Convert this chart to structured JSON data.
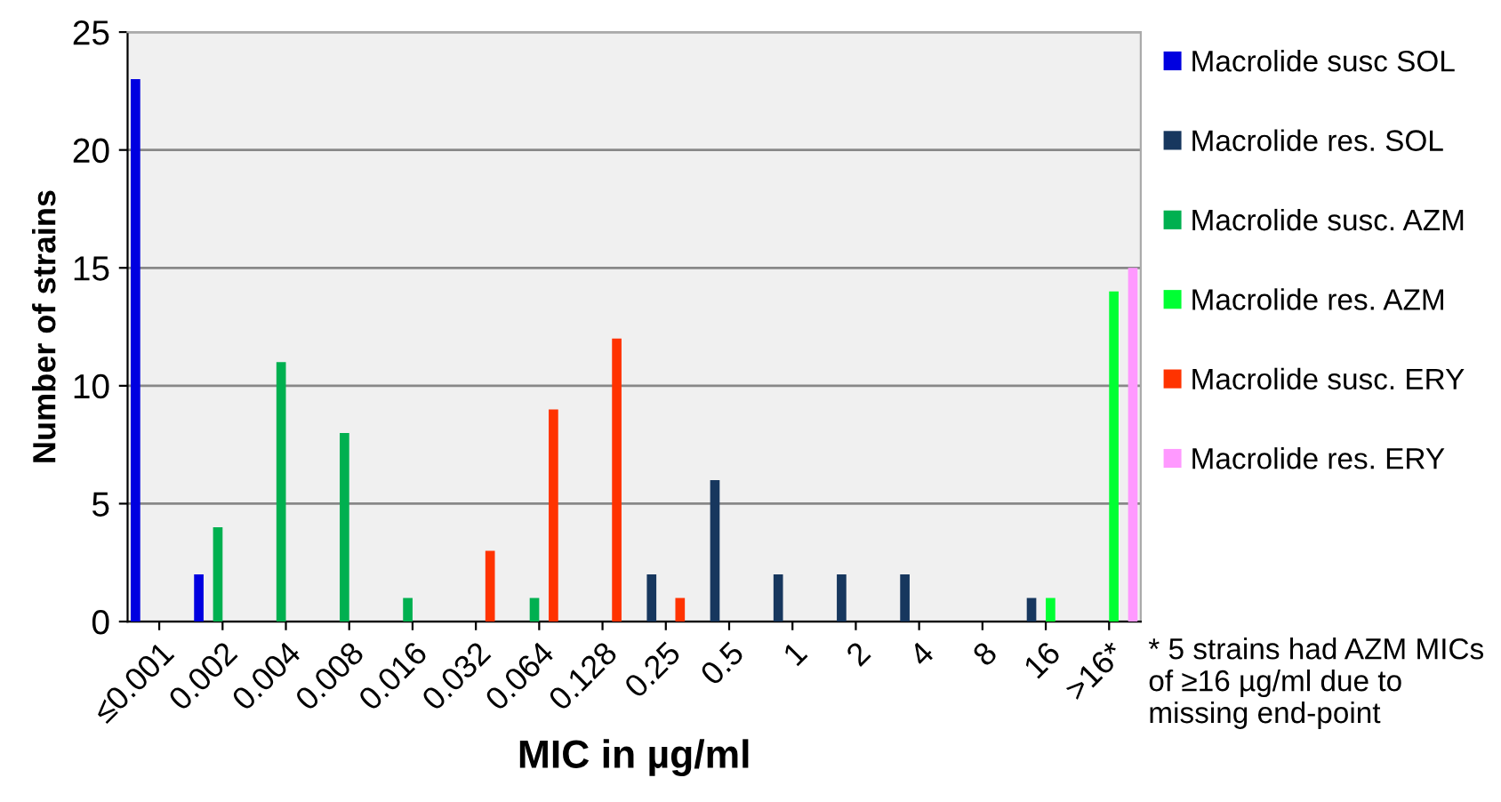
{
  "chart_data": {
    "type": "bar",
    "xlabel": "MIC in µg/ml",
    "ylabel": "Number of strains",
    "categories": [
      "≤0.001",
      "0.002",
      "0.004",
      "0.008",
      "0.016",
      "0.032",
      "0.064",
      "0.128",
      "0.25",
      "0.5",
      "1",
      "2",
      "4",
      "8",
      "16",
      ">16*"
    ],
    "series": [
      {
        "name": "Macrolide susc SOL",
        "color": "#0000e0",
        "values": [
          23,
          2,
          null,
          null,
          null,
          null,
          null,
          null,
          null,
          null,
          null,
          null,
          null,
          null,
          null,
          null
        ]
      },
      {
        "name": "Macrolide res. SOL",
        "color": "#17375e",
        "values": [
          null,
          null,
          null,
          null,
          null,
          null,
          null,
          null,
          2,
          6,
          2,
          2,
          2,
          null,
          1,
          null
        ]
      },
      {
        "name": "Macrolide susc. AZM",
        "color": "#00b050",
        "values": [
          null,
          4,
          11,
          8,
          1,
          null,
          1,
          null,
          null,
          null,
          null,
          null,
          null,
          null,
          null,
          null
        ]
      },
      {
        "name": "Macrolide res. AZM",
        "color": "#00ff33",
        "values": [
          null,
          null,
          null,
          null,
          null,
          null,
          null,
          null,
          null,
          null,
          null,
          null,
          null,
          null,
          1,
          14
        ]
      },
      {
        "name": "Macrolide susc. ERY",
        "color": "#ff3300",
        "values": [
          null,
          null,
          null,
          null,
          null,
          3,
          9,
          12,
          1,
          null,
          null,
          null,
          null,
          null,
          null,
          null
        ]
      },
      {
        "name": "Macrolide res. ERY",
        "color": "#ff99ff",
        "values": [
          null,
          null,
          null,
          null,
          null,
          null,
          null,
          null,
          null,
          null,
          null,
          null,
          null,
          null,
          null,
          15
        ]
      }
    ],
    "ylim": [
      0,
      25
    ],
    "yticks": [
      0,
      5,
      10,
      15,
      20,
      25
    ],
    "grid": "y",
    "legend": "right",
    "annotations": [
      "* 5 strains had AZM MICs of ≥16 µg/ml due to missing end-point"
    ]
  }
}
